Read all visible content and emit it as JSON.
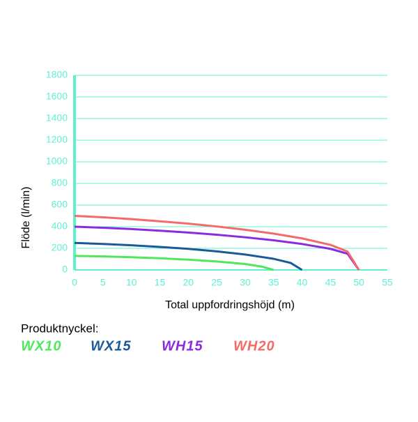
{
  "chart_data": {
    "type": "line",
    "y_label": "Flöde (l/min)",
    "x_label": "Total uppfordringshöjd (m)",
    "legend_title": "Produktnyckel:",
    "xlim": [
      0,
      55
    ],
    "xticks": [
      0,
      5,
      10,
      15,
      20,
      25,
      30,
      35,
      40,
      45,
      50,
      55
    ],
    "ylim": [
      0,
      1800
    ],
    "yticks": [
      0,
      200,
      400,
      600,
      800,
      1000,
      1200,
      1400,
      1600,
      1800
    ],
    "grid": true,
    "axis_color": "#5ff0d2",
    "series": [
      {
        "name": "WX10",
        "color": "#4fe85c",
        "x": [
          0,
          5,
          10,
          15,
          20,
          25,
          30,
          33,
          35
        ],
        "values": [
          130,
          125,
          118,
          108,
          95,
          78,
          55,
          30,
          0
        ]
      },
      {
        "name": "WX15",
        "color": "#1a5a96",
        "x": [
          0,
          5,
          10,
          15,
          20,
          25,
          30,
          35,
          38,
          40
        ],
        "values": [
          250,
          240,
          228,
          213,
          195,
          172,
          143,
          103,
          65,
          0
        ]
      },
      {
        "name": "WH15",
        "color": "#8b2be0",
        "x": [
          0,
          5,
          10,
          15,
          20,
          25,
          30,
          35,
          40,
          45,
          48,
          50
        ],
        "values": [
          400,
          390,
          378,
          363,
          346,
          326,
          302,
          274,
          240,
          195,
          150,
          0
        ]
      },
      {
        "name": "WH20",
        "color": "#f46a6a",
        "x": [
          0,
          5,
          10,
          15,
          20,
          25,
          30,
          35,
          40,
          45,
          48,
          50
        ],
        "values": [
          500,
          487,
          470,
          450,
          428,
          402,
          372,
          336,
          292,
          232,
          170,
          0
        ]
      }
    ]
  }
}
